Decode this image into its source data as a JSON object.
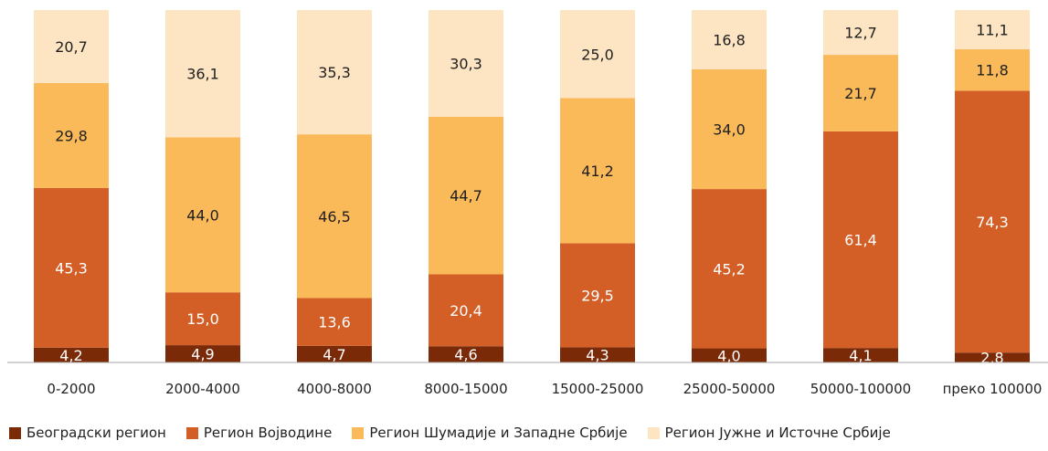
{
  "chart_data": {
    "type": "bar",
    "stacked": true,
    "categories": [
      "0-2000",
      "2000-4000",
      "4000-8000",
      "8000-15000",
      "15000-25000",
      "25000-50000",
      "50000-100000",
      "преко 100000"
    ],
    "series": [
      {
        "name": "Београдски регион",
        "color": "#7B2A07",
        "label_color": "#ffffff",
        "values": [
          4.2,
          4.9,
          4.7,
          4.6,
          4.3,
          4.0,
          4.1,
          2.8
        ],
        "labels": [
          "4,2",
          "4,9",
          "4,7",
          "4,6",
          "4,3",
          "4,0",
          "4,1",
          "2,8"
        ]
      },
      {
        "name": "Регион Војводине",
        "color": "#D35F27",
        "label_color": "#ffffff",
        "values": [
          45.3,
          15.0,
          13.6,
          20.4,
          29.5,
          45.2,
          61.4,
          74.3
        ],
        "labels": [
          "45,3",
          "15,0",
          "13,6",
          "20,4",
          "29,5",
          "45,2",
          "61,4",
          "74,3"
        ]
      },
      {
        "name": "Регион Шумадије и Западне Србије",
        "color": "#FBBA59",
        "label_color": "#1f1f1f",
        "values": [
          29.8,
          44.0,
          46.5,
          44.7,
          41.2,
          34.0,
          21.7,
          11.8
        ],
        "labels": [
          "29,8",
          "44,0",
          "46,5",
          "44,7",
          "41,2",
          "34,0",
          "21,7",
          "11,8"
        ]
      },
      {
        "name": "Регион Јужне и Источне Србије",
        "color": "#FDE4C3",
        "label_color": "#1f1f1f",
        "values": [
          20.7,
          36.1,
          35.3,
          30.3,
          25.0,
          16.8,
          12.7,
          11.1
        ],
        "labels": [
          "20,7",
          "36,1",
          "35,3",
          "30,3",
          "25,0",
          "16,8",
          "12,7",
          "11,1"
        ]
      }
    ],
    "ylim": [
      0,
      100
    ],
    "grid": false,
    "legend": "bottom"
  }
}
